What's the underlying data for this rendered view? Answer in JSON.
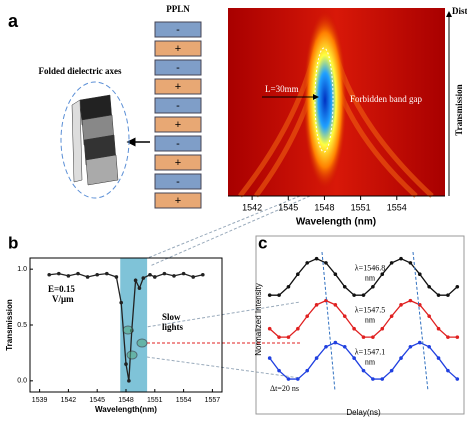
{
  "chart_data": [
    {
      "type": "heatmap",
      "label": "a",
      "column_title": "PPLN",
      "signs": [
        "-",
        "+",
        "-",
        "+",
        "-",
        "+",
        "-",
        "+",
        "-",
        "+"
      ],
      "inset_title": "Folded dielectric axes",
      "length_label": "L=30mm",
      "gap_label": "Forbidden band gap",
      "x_label": "Wavelength (nm)",
      "right_top_label": "Distance",
      "right_side_label": "Transmission",
      "xlim": [
        1540,
        1558
      ],
      "xticks": [
        1542,
        1545,
        1548,
        1551,
        1554
      ]
    },
    {
      "type": "line",
      "label": "b",
      "x_label": "Wavelength(nm)",
      "y_label": "Transmission",
      "annotations": [
        "E=0.15",
        "V/μm",
        "Slow",
        "lights"
      ],
      "xlim": [
        1538,
        1558
      ],
      "xticks": [
        1539,
        1542,
        1545,
        1548,
        1551,
        1554,
        1557
      ],
      "ylim": [
        -0.1,
        1.1
      ],
      "yticks": [
        {
          "value": 0,
          "label": "0.0"
        },
        {
          "value": 0.5,
          "label": "0.5"
        },
        {
          "value": 1,
          "label": "1.0"
        }
      ],
      "highlight": [
        1547.4,
        1550.2
      ],
      "highlight_color": "#7fc3d8",
      "x": [
        1540,
        1541,
        1542,
        1543,
        1544,
        1545,
        1546,
        1547,
        1547.5,
        1548,
        1548.3,
        1548.6,
        1549,
        1549.4,
        1549.8,
        1550.5,
        1551,
        1552,
        1553,
        1554,
        1555,
        1556
      ],
      "series": [
        {
          "color": "#222222",
          "values": [
            0.95,
            0.96,
            0.94,
            0.96,
            0.93,
            0.95,
            0.96,
            0.93,
            0.7,
            0.15,
            0.0,
            0.45,
            0.9,
            0.83,
            0.92,
            0.95,
            0.93,
            0.96,
            0.94,
            0.96,
            0.93,
            0.95
          ]
        }
      ]
    },
    {
      "type": "line",
      "label": "c",
      "x_label": "Delay(ns)",
      "y_label": "Normalized Intensity",
      "annotation": "Δt=20 ns",
      "xlim": [
        -0.5,
        20.5
      ],
      "ylim": [
        -0.3,
        3.3
      ],
      "x": [
        0,
        1,
        2,
        3,
        4,
        5,
        6,
        7,
        8,
        9,
        10,
        11,
        12,
        13,
        14,
        15,
        16,
        17,
        18,
        19,
        20
      ],
      "series": [
        {
          "name": [
            "λ=1546.8",
            "nm"
          ],
          "color": "#111111",
          "values": [
            2.08,
            2.08,
            2.28,
            2.58,
            2.85,
            2.95,
            2.85,
            2.58,
            2.28,
            2.08,
            2.08,
            2.28,
            2.58,
            2.85,
            2.95,
            2.85,
            2.58,
            2.28,
            2.08,
            2.08,
            2.28
          ]
        },
        {
          "name": [
            "λ=1547.5",
            "nm"
          ],
          "color": "#e02020",
          "values": [
            1.28,
            1.08,
            1.08,
            1.28,
            1.58,
            1.85,
            1.95,
            1.85,
            1.58,
            1.28,
            1.08,
            1.08,
            1.28,
            1.58,
            1.85,
            1.95,
            1.85,
            1.58,
            1.28,
            1.08,
            1.08
          ]
        },
        {
          "name": [
            "λ=1547.1",
            "nm"
          ],
          "color": "#2040e0",
          "values": [
            0.58,
            0.28,
            0.08,
            0.08,
            0.28,
            0.58,
            0.85,
            0.95,
            0.85,
            0.58,
            0.28,
            0.08,
            0.08,
            0.28,
            0.58,
            0.85,
            0.95,
            0.85,
            0.58,
            0.28,
            0.08
          ]
        }
      ]
    }
  ]
}
